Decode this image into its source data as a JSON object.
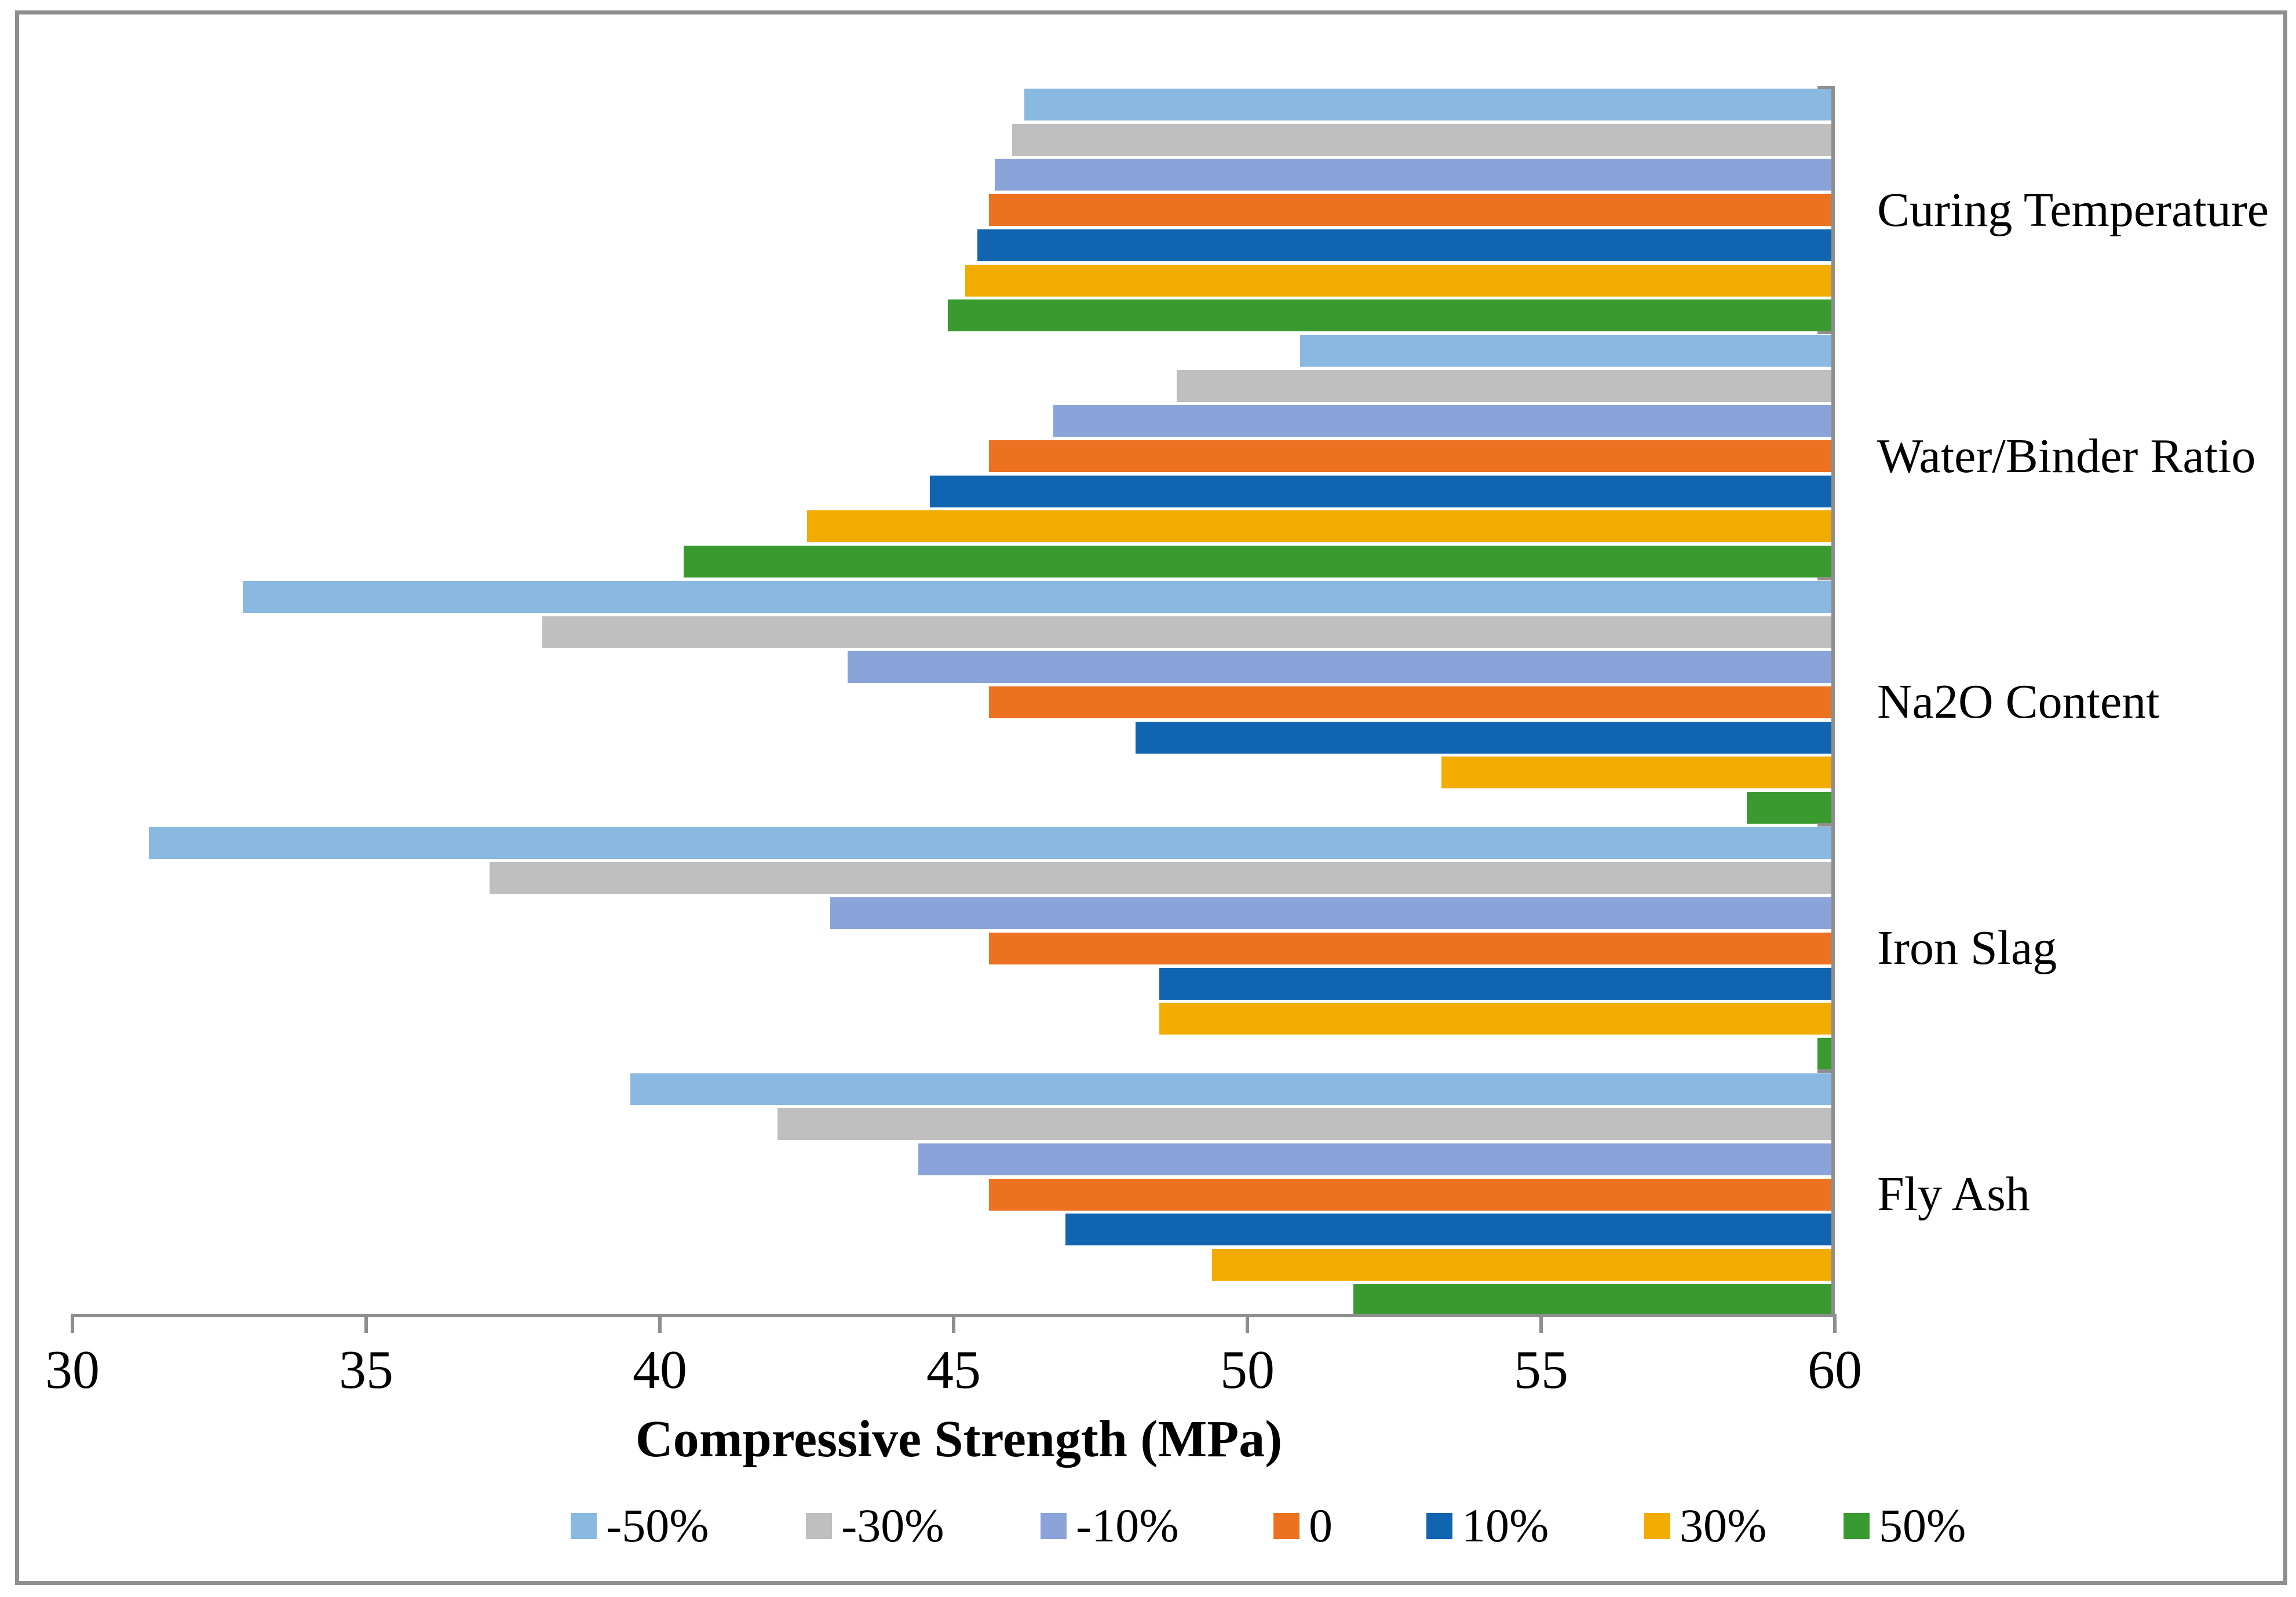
{
  "figure": {
    "border_color": "#8E8E8E",
    "background": "#FFFFFF"
  },
  "chart_data": {
    "type": "bar",
    "orientation": "horizontal",
    "bar_anchor": "bars span from value to axis max (60) and are anchored at the right edge",
    "title": "",
    "xlabel": "Compressive Strength (MPa)",
    "ylabel": "",
    "x_range": [
      30,
      60
    ],
    "x_ticks": [
      30,
      35,
      40,
      45,
      50,
      55,
      60
    ],
    "grid": false,
    "axis_color": "#8E8E8E",
    "categories": [
      "Curing Temperature",
      "Water/Binder Ratio",
      "Na2O Content",
      "Iron Slag",
      "Fly Ash"
    ],
    "series": [
      {
        "name": "-50%",
        "color": "#89B8E1",
        "values": [
          46.2,
          50.9,
          32.9,
          31.3,
          39.5
        ]
      },
      {
        "name": "-30%",
        "color": "#BFBFBF",
        "values": [
          46.0,
          48.8,
          38.0,
          37.1,
          42.0
        ]
      },
      {
        "name": "-10%",
        "color": "#8AA4D9",
        "values": [
          45.7,
          46.7,
          43.2,
          42.9,
          44.4
        ]
      },
      {
        "name": "0",
        "color": "#EC7120",
        "values": [
          45.6,
          45.6,
          45.6,
          45.6,
          45.6
        ]
      },
      {
        "name": "10%",
        "color": "#1164B0",
        "values": [
          45.4,
          44.6,
          48.1,
          48.5,
          46.9
        ]
      },
      {
        "name": "30%",
        "color": "#F2AC00",
        "values": [
          45.2,
          42.5,
          53.3,
          48.5,
          49.4
        ]
      },
      {
        "name": "50%",
        "color": "#399A2F",
        "values": [
          44.9,
          40.4,
          58.5,
          59.7,
          51.8
        ]
      }
    ],
    "legend": {
      "position": "bottom",
      "labels": [
        "-50%",
        "-30%",
        "-10%",
        "0",
        "10%",
        "30%",
        "50%"
      ]
    }
  }
}
